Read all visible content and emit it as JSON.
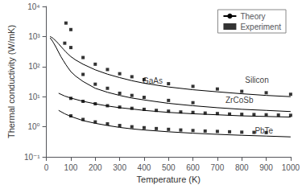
{
  "chart_data": {
    "type": "line",
    "title": "",
    "xlabel": "Temperature (K)",
    "ylabel": "Thermal conductivity (W/mK)",
    "log": "y",
    "grid": false,
    "legend": "upper right",
    "xlim": [
      0,
      1000
    ],
    "xticks": [
      0,
      100,
      200,
      300,
      400,
      500,
      600,
      700,
      800,
      900,
      1000
    ],
    "ylim": [
      0.1,
      10000
    ],
    "yticks": [
      {
        "value": 0.1,
        "label": "10⁻¹"
      },
      {
        "value": 1,
        "label": "10⁰"
      },
      {
        "value": 10,
        "label": "10¹"
      },
      {
        "value": 100,
        "label": "10²"
      },
      {
        "value": 1000,
        "label": "10³"
      },
      {
        "value": 10000,
        "label": "10⁴"
      }
    ],
    "background_color": "#ffffff",
    "series": [
      {
        "name": "Theory",
        "type": "line",
        "line_style": "solid",
        "color": "#000000",
        "x": [
          15,
          20,
          25,
          30,
          40,
          50,
          60,
          70,
          80,
          90,
          100,
          120,
          150,
          200,
          250,
          300,
          350,
          400,
          500,
          600,
          700,
          800,
          900,
          1000
        ],
        "values": [
          1000,
          950,
          900,
          830,
          700,
          570,
          460,
          375,
          305,
          255,
          215,
          165,
          120,
          78,
          56,
          43,
          34,
          28,
          21,
          17,
          14.5,
          12.5,
          11,
          10
        ]
      },
      {
        "name": "Experiment",
        "type": "scatter",
        "marker": "square",
        "color": "#000000",
        "x": [
          75,
          100,
          150,
          200,
          250,
          300,
          350,
          400,
          500,
          600,
          700,
          800,
          900,
          1000
        ],
        "values": [
          600,
          430,
          200,
          120,
          80,
          58,
          46,
          37,
          27,
          22,
          18,
          15,
          13.5,
          12
        ]
      },
      {
        "name": "Theory",
        "type": "line",
        "line_style": "solid",
        "color": "#000000",
        "x": [
          15,
          20,
          25,
          30,
          40,
          50,
          60,
          70,
          80,
          90,
          100,
          120,
          150,
          200,
          250,
          300,
          350,
          400,
          500,
          600,
          700,
          800,
          900,
          1000
        ],
        "values": [
          900,
          800,
          700,
          600,
          430,
          300,
          210,
          155,
          115,
          88,
          68,
          48,
          32,
          19,
          14,
          11,
          9,
          7.8,
          6.0,
          5.0,
          4.3,
          3.8,
          3.5,
          3.2
        ]
      },
      {
        "name": "Experiment",
        "type": "scatter",
        "marker": "square",
        "color": "#000000",
        "x": [
          80,
          100,
          150,
          200,
          250,
          300,
          350,
          400,
          500,
          600
        ],
        "values": [
          2800,
          1700,
          55,
          26,
          19,
          13,
          11,
          9.5,
          7.5,
          6.3
        ]
      },
      {
        "name": "Theory",
        "type": "line",
        "line_style": "solid",
        "color": "#000000",
        "x": [
          50,
          75,
          100,
          150,
          200,
          250,
          300,
          350,
          400,
          500,
          600,
          700,
          800,
          900,
          1000
        ],
        "values": [
          13.0,
          10.5,
          9.0,
          7.0,
          5.8,
          4.9,
          4.3,
          3.9,
          3.5,
          3.0,
          2.7,
          2.5,
          2.3,
          2.2,
          2.1
        ]
      },
      {
        "name": "Experiment",
        "type": "scatter",
        "marker": "square",
        "color": "#000000",
        "x": [
          100,
          150,
          200,
          250,
          300,
          350,
          400,
          450,
          500,
          550,
          600,
          650,
          700,
          750,
          800,
          850,
          900,
          950,
          1000
        ],
        "values": [
          8.8,
          7.0,
          5.8,
          5.0,
          4.5,
          4.1,
          3.8,
          3.5,
          3.3,
          3.1,
          3.0,
          2.85,
          2.75,
          2.65,
          2.6,
          2.55,
          2.5,
          2.45,
          2.4
        ]
      },
      {
        "name": "Theory",
        "type": "line",
        "line_style": "solid",
        "color": "#000000",
        "x": [
          50,
          75,
          100,
          150,
          200,
          250,
          300,
          350,
          400,
          500,
          600,
          700,
          800,
          900,
          1000
        ],
        "values": [
          3.5,
          2.7,
          2.2,
          1.6,
          1.3,
          1.1,
          0.95,
          0.85,
          0.78,
          0.68,
          0.61,
          0.56,
          0.52,
          0.49,
          0.46
        ]
      },
      {
        "name": "Experiment",
        "type": "scatter",
        "marker": "square",
        "color": "#000000",
        "x": [
          100,
          150,
          200,
          250,
          300,
          350,
          400,
          450,
          500,
          550,
          600,
          650,
          700,
          750,
          800,
          850,
          900
        ],
        "values": [
          2.3,
          1.75,
          1.45,
          1.25,
          1.1,
          1.0,
          0.93,
          0.87,
          0.82,
          0.78,
          0.75,
          0.72,
          0.7,
          0.68,
          0.66,
          0.65,
          0.64
        ]
      }
    ],
    "annotations": [
      {
        "text": "Silicon",
        "x": 810,
        "y": 36
      },
      {
        "text": "GaAs",
        "x": 390,
        "y": 34
      },
      {
        "text": "ZrCoSb",
        "x": 730,
        "y": 7.8
      },
      {
        "text": "PbTe",
        "x": 850,
        "y": 0.73
      }
    ]
  }
}
